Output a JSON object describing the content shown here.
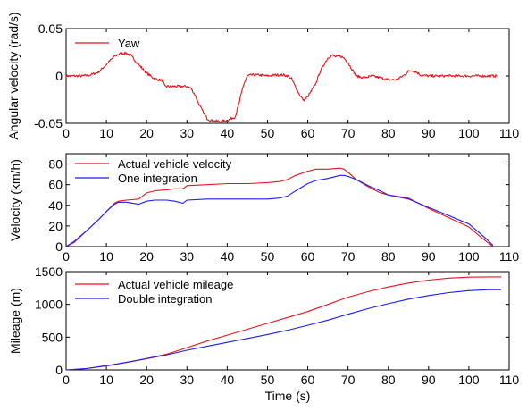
{
  "chart_data": [
    {
      "type": "line",
      "ylabel": "Angular velocity (rad/s)",
      "xlabel": "",
      "xlim": [
        0,
        110
      ],
      "ylim": [
        -0.05,
        0.05
      ],
      "xticks": [
        "0",
        "10",
        "20",
        "30",
        "40",
        "50",
        "60",
        "70",
        "80",
        "90",
        "100",
        "110"
      ],
      "yticks": [
        "-0.05",
        "0",
        "0.05"
      ],
      "legend_position": "top-left",
      "series": [
        {
          "name": "Yaw",
          "color": "#e8141b",
          "x": [
            0,
            4,
            6,
            8,
            10,
            12,
            13,
            14,
            15,
            16,
            18,
            20,
            22,
            24,
            24.5,
            25,
            26,
            28,
            30,
            31,
            32,
            33,
            34,
            35,
            36,
            38,
            40,
            42,
            43,
            44,
            45,
            46,
            48,
            50,
            52,
            54,
            55,
            56,
            57,
            58,
            59,
            60,
            62,
            63,
            64,
            65,
            66,
            67,
            68,
            69,
            70,
            72,
            74,
            76,
            78,
            80,
            82,
            84,
            85,
            86,
            87,
            88,
            90,
            92,
            94,
            96,
            98,
            100,
            102,
            104,
            106,
            107
          ],
          "y": [
            0,
            0,
            0.001,
            0.004,
            0.012,
            0.021,
            0.023,
            0.024,
            0.024,
            0.022,
            0.012,
            0.003,
            -0.003,
            -0.005,
            -0.011,
            -0.011,
            -0.011,
            -0.011,
            -0.011,
            -0.013,
            -0.02,
            -0.03,
            -0.038,
            -0.045,
            -0.047,
            -0.048,
            -0.047,
            -0.043,
            -0.028,
            -0.01,
            0,
            0.001,
            0.001,
            0,
            0.001,
            0.001,
            0,
            -0.003,
            -0.012,
            -0.02,
            -0.026,
            -0.022,
            -0.008,
            0.004,
            0.012,
            0.019,
            0.022,
            0.02,
            0.021,
            0.019,
            0.014,
            0,
            -0.002,
            0,
            -0.002,
            -0.004,
            -0.004,
            0.001,
            0.005,
            0.006,
            0.004,
            0.001,
            0,
            0,
            0,
            0,
            0,
            0,
            0,
            0,
            0,
            0
          ]
        }
      ]
    },
    {
      "type": "line",
      "ylabel": "Velocity (km/h)",
      "xlabel": "",
      "xlim": [
        0,
        110
      ],
      "ylim": [
        0,
        90
      ],
      "xticks": [
        "0",
        "10",
        "20",
        "30",
        "40",
        "50",
        "60",
        "70",
        "80",
        "90",
        "100",
        "110"
      ],
      "yticks": [
        "0",
        "20",
        "40",
        "60",
        "80"
      ],
      "legend_position": "top-left",
      "series": [
        {
          "name": "Actual vehicle velocity",
          "color": "#e8141b",
          "x": [
            0,
            2,
            5,
            8,
            10,
            12,
            13,
            15,
            18,
            20,
            22,
            25,
            27,
            29,
            30,
            35,
            40,
            45,
            50,
            53,
            55,
            57,
            60,
            62,
            65,
            68,
            69,
            70,
            72,
            75,
            78,
            80,
            85,
            90,
            95,
            100,
            103,
            105,
            106
          ],
          "y": [
            0,
            4,
            15,
            26,
            34,
            42,
            44,
            45,
            46,
            52,
            54,
            55,
            56,
            56,
            59,
            60,
            61,
            61,
            62,
            63,
            65,
            69,
            73,
            75,
            75,
            76,
            75,
            72,
            65,
            58,
            52,
            50,
            47,
            37,
            28,
            19,
            9,
            3,
            0
          ]
        },
        {
          "name": "One integration",
          "color": "#1b1bff",
          "x": [
            0,
            2,
            5,
            8,
            10,
            12,
            13,
            15,
            18,
            20,
            22,
            25,
            27,
            29,
            30,
            35,
            40,
            45,
            50,
            53,
            55,
            57,
            60,
            62,
            65,
            68,
            69,
            70,
            72,
            75,
            78,
            80,
            85,
            90,
            95,
            100,
            103,
            105,
            106
          ],
          "y": [
            0,
            5,
            15,
            26,
            34,
            41,
            43,
            43,
            41,
            44,
            45,
            45,
            44,
            42,
            45,
            46,
            46,
            46,
            46,
            47,
            49,
            54,
            61,
            64,
            66,
            69,
            69,
            68,
            65,
            59,
            54,
            50,
            46,
            38,
            30,
            22,
            12,
            5,
            1
          ]
        }
      ]
    },
    {
      "type": "line",
      "ylabel": "Mileage (m)",
      "xlabel": "Time (s)",
      "xlim": [
        0,
        110
      ],
      "ylim": [
        0,
        1500
      ],
      "xticks": [
        "0",
        "10",
        "20",
        "30",
        "40",
        "50",
        "60",
        "70",
        "80",
        "90",
        "100",
        "110"
      ],
      "yticks": [
        "0",
        "500",
        "1000",
        "1500"
      ],
      "legend_position": "top-left",
      "series": [
        {
          "name": "Actual vehicle mileage",
          "color": "#e8141b",
          "x": [
            0,
            5,
            10,
            15,
            20,
            25,
            30,
            35,
            40,
            45,
            50,
            55,
            60,
            65,
            70,
            75,
            80,
            85,
            90,
            95,
            100,
            105,
            108
          ],
          "y": [
            0,
            20,
            60,
            115,
            175,
            240,
            340,
            440,
            530,
            620,
            710,
            800,
            890,
            1000,
            1110,
            1195,
            1265,
            1325,
            1370,
            1400,
            1415,
            1420,
            1420
          ]
        },
        {
          "name": "Double integration",
          "color": "#1b1bff",
          "x": [
            0,
            5,
            10,
            15,
            20,
            25,
            30,
            35,
            40,
            45,
            50,
            55,
            60,
            65,
            70,
            75,
            80,
            85,
            90,
            95,
            100,
            105,
            108
          ],
          "y": [
            0,
            20,
            65,
            115,
            170,
            230,
            300,
            360,
            420,
            480,
            540,
            605,
            680,
            760,
            850,
            935,
            1010,
            1080,
            1135,
            1180,
            1210,
            1225,
            1225
          ]
        }
      ]
    }
  ]
}
